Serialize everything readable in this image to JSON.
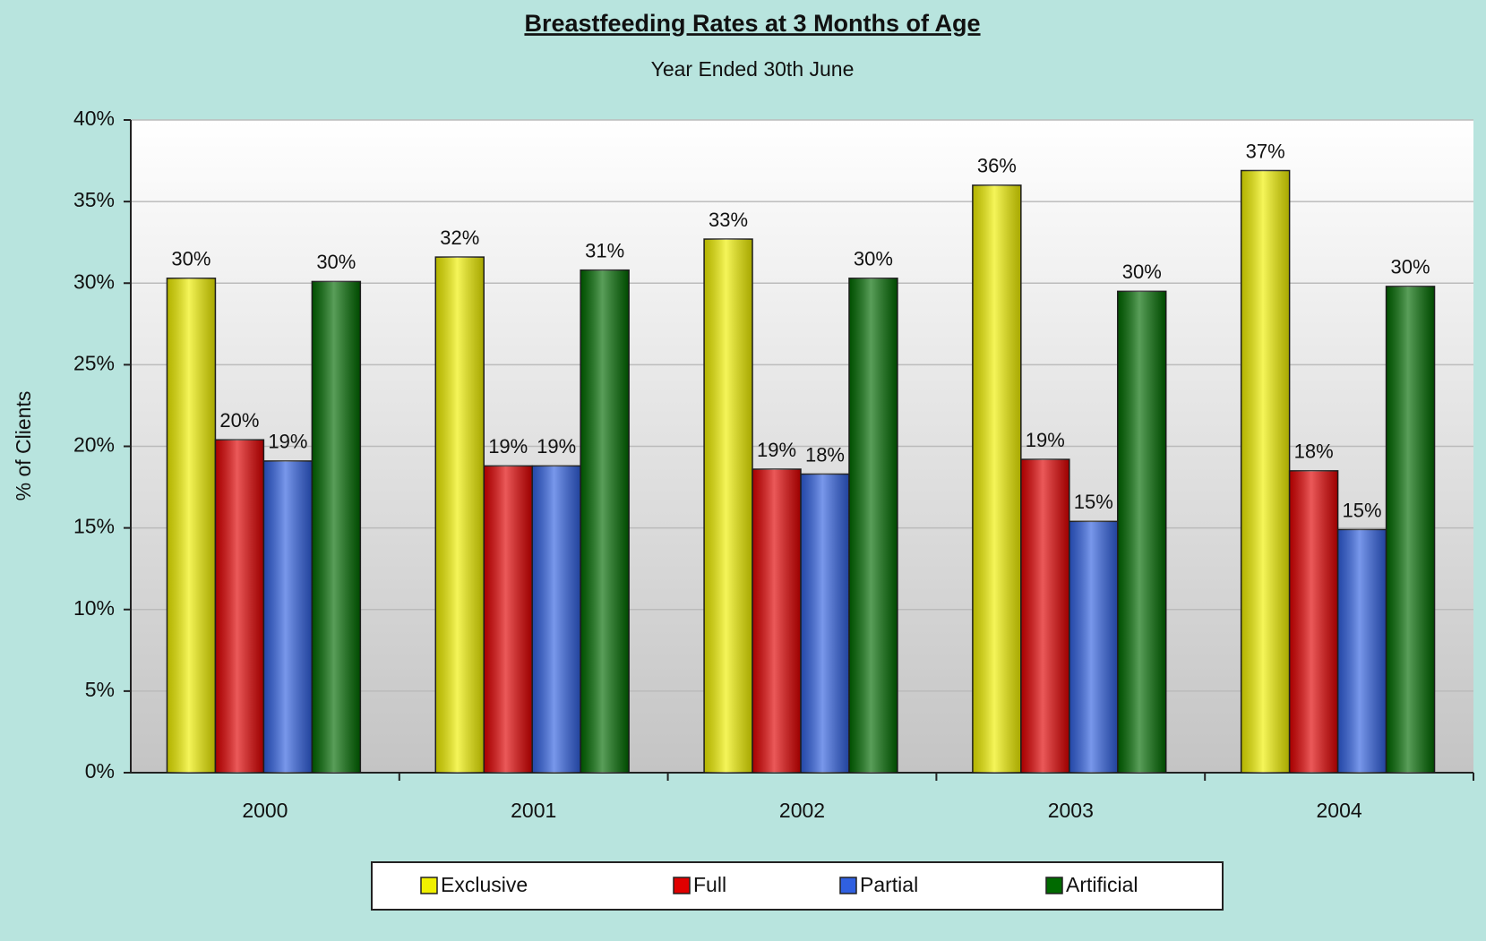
{
  "chart_data": {
    "type": "bar",
    "title": "Breastfeeding Rates at 3 Months of Age",
    "subtitle": "Year Ended 30th June",
    "y_label": "% of Clients",
    "categories": [
      "2000",
      "2001",
      "2002",
      "2003",
      "2004"
    ],
    "series": [
      {
        "name": "Exclusive",
        "color": "#f0f000",
        "values": [
          30.3,
          31.6,
          32.7,
          36.0,
          36.9
        ],
        "value_labels": [
          "30%",
          "32%",
          "33%",
          "36%",
          "37%"
        ]
      },
      {
        "name": "Full",
        "color": "#e00000",
        "values": [
          20.4,
          18.8,
          18.6,
          19.2,
          18.5
        ],
        "value_labels": [
          "20%",
          "19%",
          "19%",
          "19%",
          "18%"
        ]
      },
      {
        "name": "Partial",
        "color": "#3060e0",
        "values": [
          19.1,
          18.8,
          18.3,
          15.4,
          14.9
        ],
        "value_labels": [
          "19%",
          "19%",
          "18%",
          "15%",
          "15%"
        ]
      },
      {
        "name": "Artificial",
        "color": "#006a00",
        "values": [
          30.1,
          30.8,
          30.3,
          29.5,
          29.8
        ],
        "value_labels": [
          "30%",
          "31%",
          "30%",
          "30%",
          "30%"
        ]
      }
    ],
    "ylim": [
      0,
      40
    ],
    "yticks": [
      {
        "value": 0,
        "label": "0%"
      },
      {
        "value": 5,
        "label": "5%"
      },
      {
        "value": 10,
        "label": "10%"
      },
      {
        "value": 15,
        "label": "15%"
      },
      {
        "value": 20,
        "label": "20%"
      },
      {
        "value": 25,
        "label": "25%"
      },
      {
        "value": 30,
        "label": "30%"
      },
      {
        "value": 35,
        "label": "35%"
      },
      {
        "value": 40,
        "label": "40%"
      }
    ],
    "grid": true,
    "legend": "bottom"
  }
}
